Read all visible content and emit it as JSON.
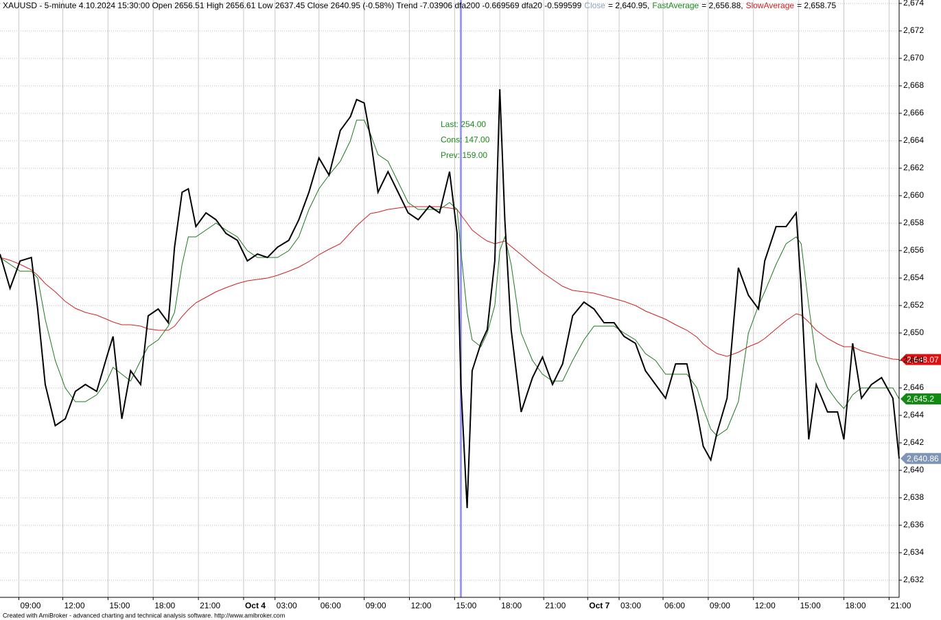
{
  "chart_data": {
    "type": "line",
    "title": "XAUUSD - 5-minute 4.10.2024 15:30:00 Open 2656.51 High 2656.61 Low 2637.45 Close 2640.95 (-0.58%) Trend -7.03906 dfa200 -0.669569 dfa20 -0.599599",
    "footer": "Created with AmiBroker - advanced charting and technical analysis software. http://www.amibroker.com",
    "annotations": [
      {
        "text": "Last: 254.00",
        "color": "#1a8a1a"
      },
      {
        "text": "Cons: 147.00",
        "color": "#1a8a1a"
      },
      {
        "text": "Prev: 159.00",
        "color": "#1a8a1a"
      }
    ],
    "cursor": {
      "x": 367,
      "color": "#9a9af5"
    },
    "x": [
      0,
      8,
      16,
      25,
      30,
      36,
      44,
      52,
      60,
      68,
      77,
      85,
      90,
      97,
      104,
      112,
      118,
      126,
      134,
      139,
      145,
      150,
      156,
      164,
      172,
      180,
      189,
      197,
      205,
      213,
      221,
      230,
      238,
      246,
      254,
      262,
      271,
      279,
      284,
      290,
      295,
      301,
      309,
      317,
      325,
      333,
      342,
      350,
      358,
      364,
      367,
      372,
      376,
      383,
      388,
      394,
      398,
      402,
      407,
      415,
      424,
      432,
      440,
      448,
      456,
      465,
      473,
      481,
      489,
      497,
      506,
      514,
      522,
      530,
      538,
      547,
      555,
      560,
      566,
      571,
      579,
      588,
      596,
      604,
      609,
      618,
      626,
      634,
      638,
      644,
      650,
      659,
      667,
      672,
      679,
      686,
      694,
      702,
      711,
      716
    ],
    "series": [
      {
        "name": "Close",
        "legend_value": "= 2,640.95,",
        "color": "#000000",
        "legend_color": "#8fa2c0",
        "last_label": "2,640.86",
        "label_color": "#7f95b5",
        "width": 2,
        "values": [
          2655.75,
          2653.25,
          2655.25,
          2655.5,
          2651.75,
          2646.25,
          2643.25,
          2643.75,
          2645.75,
          2646.25,
          2645.75,
          2648.25,
          2649.75,
          2643.75,
          2647.25,
          2646.25,
          2651.25,
          2651.75,
          2650.75,
          2656.25,
          2660.25,
          2660.5,
          2657.75,
          2658.75,
          2658.25,
          2657.25,
          2656.75,
          2655.25,
          2655.75,
          2655.5,
          2656.25,
          2656.75,
          2658.25,
          2660.25,
          2662.75,
          2661.5,
          2664.75,
          2665.75,
          2667,
          2666.75,
          2664.25,
          2660.25,
          2661.75,
          2660.25,
          2658.75,
          2658.25,
          2659.25,
          2658.75,
          2661.75,
          2657.25,
          2646.25,
          2637.25,
          2647.25,
          2649.25,
          2650.25,
          2655.25,
          2667.75,
          2658.25,
          2650.25,
          2644.25,
          2646.75,
          2648.25,
          2646.25,
          2647.75,
          2651.25,
          2652.25,
          2651.75,
          2650.75,
          2650.75,
          2649.75,
          2649.25,
          2647.25,
          2646.25,
          2645.25,
          2647.75,
          2647.75,
          2644.25,
          2641.75,
          2640.75,
          2642.75,
          2645.25,
          2654.75,
          2652.75,
          2651.75,
          2655.25,
          2657.75,
          2657.75,
          2658.75,
          2653.25,
          2642.25,
          2646.25,
          2644.25,
          2644.25,
          2642.25,
          2649.25,
          2645.25,
          2646.25,
          2646.75,
          2645.25,
          2640.86
        ]
      },
      {
        "name": "FastAverage",
        "legend_value": "= 2,656.88,",
        "color": "#1a7a1a",
        "legend_color": "#1a8a1a",
        "last_label": "2,645.2",
        "label_color": "#138a13",
        "width": 1,
        "values": [
          2655.5,
          2655,
          2654.5,
          2654.5,
          2654,
          2651,
          2648,
          2646,
          2645,
          2645,
          2645.5,
          2646.5,
          2647.5,
          2647,
          2646.5,
          2648,
          2649,
          2649.5,
          2650.5,
          2651.5,
          2655,
          2657,
          2657,
          2657.5,
          2658,
          2657.5,
          2657,
          2656,
          2655.5,
          2655.5,
          2655.5,
          2656,
          2657,
          2659,
          2660.5,
          2661.5,
          2662.5,
          2664,
          2665.5,
          2665.5,
          2664.5,
          2663,
          2662.5,
          2661,
          2659.5,
          2659,
          2659,
          2659,
          2659.5,
          2659,
          2656,
          2651.5,
          2649.5,
          2649,
          2650,
          2652,
          2656,
          2657,
          2655,
          2650,
          2648,
          2647,
          2646.5,
          2646.5,
          2648,
          2649.5,
          2650.5,
          2650.5,
          2650.5,
          2650,
          2649.5,
          2648.5,
          2648,
          2647,
          2647,
          2647,
          2646,
          2644.5,
          2643,
          2642.5,
          2643,
          2645,
          2650,
          2652,
          2653,
          2655,
          2656.5,
          2657,
          2656.5,
          2652,
          2648,
          2646,
          2645,
          2644.5,
          2645.5,
          2646,
          2646,
          2646,
          2646,
          2645.2
        ]
      },
      {
        "name": "SlowAverage",
        "legend_value": "= 2,658.75",
        "color": "#d42020",
        "legend_color": "#d42020",
        "last_label": "2,648.07",
        "label_color": "#e01010",
        "width": 1,
        "values": [
          2655.5,
          2655.3,
          2655,
          2654.6,
          2654.2,
          2653.6,
          2653,
          2652.3,
          2651.8,
          2651.5,
          2651.3,
          2651,
          2650.8,
          2650.6,
          2650.6,
          2650.5,
          2650.3,
          2650.2,
          2650.2,
          2650.5,
          2651.2,
          2651.7,
          2652.2,
          2652.6,
          2653,
          2653.3,
          2653.6,
          2653.8,
          2653.9,
          2654,
          2654.2,
          2654.5,
          2654.8,
          2655.2,
          2655.7,
          2656.1,
          2656.5,
          2657.3,
          2657.8,
          2658.3,
          2658.7,
          2658.8,
          2659,
          2659.1,
          2659.2,
          2659.2,
          2659.2,
          2659.2,
          2659.1,
          2659,
          2658.6,
          2658,
          2657.5,
          2657,
          2656.7,
          2656.5,
          2656.6,
          2656.7,
          2656.3,
          2655.7,
          2655,
          2654.4,
          2653.9,
          2653.4,
          2653.1,
          2653,
          2652.9,
          2652.7,
          2652.5,
          2652.3,
          2652,
          2651.6,
          2651.3,
          2651,
          2650.6,
          2650.2,
          2649.7,
          2649.2,
          2648.8,
          2648.5,
          2648.3,
          2648.6,
          2649,
          2649.3,
          2649.6,
          2650.3,
          2650.9,
          2651.4,
          2651.3,
          2650.8,
          2650.2,
          2649.6,
          2649.2,
          2649,
          2649,
          2648.7,
          2648.5,
          2648.3,
          2648.1,
          2648.07
        ]
      }
    ],
    "xlim": [
      0,
      716
    ],
    "xticks": [
      {
        "value": 15,
        "label": "09:00"
      },
      {
        "value": 50,
        "label": "12:00"
      },
      {
        "value": 86,
        "label": "15:00"
      },
      {
        "value": 122,
        "label": "18:00"
      },
      {
        "value": 158,
        "label": "21:00"
      },
      {
        "value": 194,
        "label": "Oct 4"
      },
      {
        "value": 219,
        "label": "03:00"
      },
      {
        "value": 254,
        "label": "06:00"
      },
      {
        "value": 290,
        "label": "09:00"
      },
      {
        "value": 326,
        "label": "12:00"
      },
      {
        "value": 362,
        "label": "15:00"
      },
      {
        "value": 398,
        "label": "18:00"
      },
      {
        "value": 433,
        "label": "21:00"
      },
      {
        "value": 468,
        "label": "Oct 7"
      },
      {
        "value": 493,
        "label": "03:00"
      },
      {
        "value": 528,
        "label": "06:00"
      },
      {
        "value": 564,
        "label": "09:00"
      },
      {
        "value": 600,
        "label": "12:00"
      },
      {
        "value": 636,
        "label": "15:00"
      },
      {
        "value": 672,
        "label": "18:00"
      },
      {
        "value": 708,
        "label": "21:00"
      }
    ],
    "ylim": [
      2630.75,
      2674.25
    ],
    "yticks": [
      {
        "value": 2632,
        "label": "2,632"
      },
      {
        "value": 2634,
        "label": "2,634"
      },
      {
        "value": 2636,
        "label": "2,636"
      },
      {
        "value": 2638,
        "label": "2,638"
      },
      {
        "value": 2640,
        "label": "2,640"
      },
      {
        "value": 2642,
        "label": "2,642"
      },
      {
        "value": 2644,
        "label": "2,644"
      },
      {
        "value": 2646,
        "label": "2,646"
      },
      {
        "value": 2648,
        "label": "2,648"
      },
      {
        "value": 2650,
        "label": "2,650"
      },
      {
        "value": 2652,
        "label": "2,652"
      },
      {
        "value": 2654,
        "label": "2,654"
      },
      {
        "value": 2656,
        "label": "2,656"
      },
      {
        "value": 2658,
        "label": "2,658"
      },
      {
        "value": 2660,
        "label": "2,660"
      },
      {
        "value": 2662,
        "label": "2,662"
      },
      {
        "value": 2664,
        "label": "2,664"
      },
      {
        "value": 2666,
        "label": "2,666"
      },
      {
        "value": 2668,
        "label": "2,668"
      },
      {
        "value": 2670,
        "label": "2,670"
      },
      {
        "value": 2672,
        "label": "2,672"
      },
      {
        "value": 2674,
        "label": "2,674"
      }
    ],
    "grid": true
  }
}
